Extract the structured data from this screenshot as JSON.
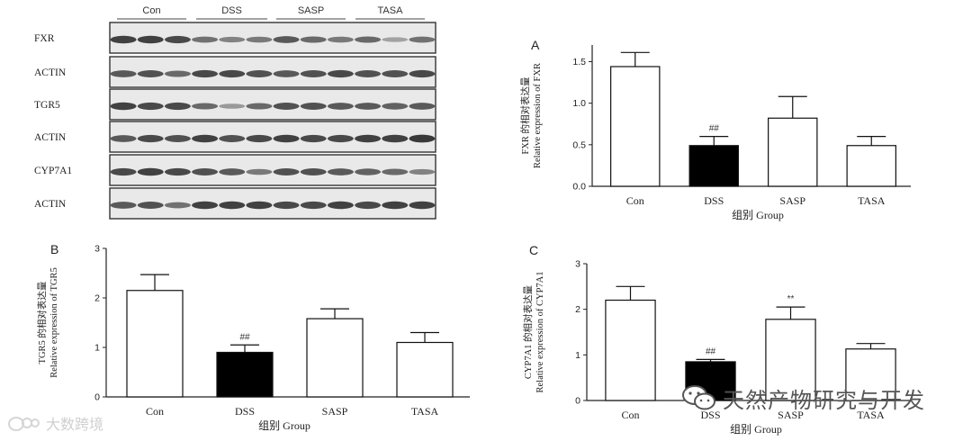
{
  "blot": {
    "groups": [
      "Con",
      "DSS",
      "SASP",
      "TASA"
    ],
    "rows": [
      {
        "label": "FXR",
        "bands": [
          0.85,
          0.85,
          0.8,
          0.55,
          0.45,
          0.5,
          0.7,
          0.6,
          0.5,
          0.6,
          0.25,
          0.55
        ]
      },
      {
        "label": "ACTIN",
        "bands": [
          0.7,
          0.75,
          0.6,
          0.8,
          0.8,
          0.75,
          0.7,
          0.75,
          0.8,
          0.75,
          0.75,
          0.8
        ]
      },
      {
        "label": "TGR5",
        "bands": [
          0.85,
          0.8,
          0.8,
          0.6,
          0.3,
          0.6,
          0.75,
          0.75,
          0.7,
          0.7,
          0.65,
          0.7
        ]
      },
      {
        "label": "ACTIN",
        "bands": [
          0.7,
          0.8,
          0.75,
          0.85,
          0.75,
          0.8,
          0.85,
          0.8,
          0.8,
          0.85,
          0.85,
          0.9
        ]
      },
      {
        "label": "CYP7A1",
        "bands": [
          0.8,
          0.85,
          0.8,
          0.75,
          0.7,
          0.5,
          0.75,
          0.75,
          0.7,
          0.65,
          0.6,
          0.45
        ]
      },
      {
        "label": "ACTIN",
        "bands": [
          0.7,
          0.75,
          0.55,
          0.85,
          0.85,
          0.85,
          0.8,
          0.8,
          0.85,
          0.8,
          0.85,
          0.85
        ]
      }
    ]
  },
  "chart_data": [
    {
      "type": "bar",
      "panel_letter": "A",
      "categories": [
        "Con",
        "DSS",
        "SASP",
        "TASA"
      ],
      "values": [
        1.44,
        0.49,
        0.82,
        0.49
      ],
      "errors": [
        0.17,
        0.11,
        0.26,
        0.11
      ],
      "fills": [
        "#ffffff",
        "#000000",
        "#ffffff",
        "#ffffff"
      ],
      "annotations": [
        "",
        "##",
        "",
        ""
      ],
      "ylabel_cn": "FXR 的相对表达量",
      "ylabel_en": "Relative expression of FXR",
      "xlabel": "组别  Group",
      "ylim": [
        0,
        1.7
      ],
      "ticks": [
        0.0,
        0.5,
        1.0,
        1.5
      ],
      "tick_labels": [
        "0.0",
        "0.5",
        "1.0",
        "1.5"
      ]
    },
    {
      "type": "bar",
      "panel_letter": "B",
      "categories": [
        "Con",
        "DSS",
        "SASP",
        "TASA"
      ],
      "values": [
        2.15,
        0.9,
        1.58,
        1.1
      ],
      "errors": [
        0.32,
        0.15,
        0.2,
        0.2
      ],
      "fills": [
        "#ffffff",
        "#000000",
        "#ffffff",
        "#ffffff"
      ],
      "annotations": [
        "",
        "##",
        "",
        ""
      ],
      "ylabel_cn": "TGR5 的相对表达量",
      "ylabel_en": "Relative expression of TGR5",
      "xlabel": "组别  Group",
      "ylim": [
        0,
        3
      ],
      "ticks": [
        0,
        1,
        2,
        3
      ],
      "tick_labels": [
        "0",
        "1",
        "2",
        "3"
      ]
    },
    {
      "type": "bar",
      "panel_letter": "C",
      "categories": [
        "Con",
        "DSS",
        "SASP",
        "TASA"
      ],
      "values": [
        2.2,
        0.85,
        1.78,
        1.13
      ],
      "errors": [
        0.3,
        0.05,
        0.27,
        0.12
      ],
      "fills": [
        "#ffffff",
        "#000000",
        "#ffffff",
        "#ffffff"
      ],
      "annotations": [
        "",
        "##",
        "**",
        ""
      ],
      "ylabel_cn": "CYP7A1 的相对表达量",
      "ylabel_en": "Relative expression of CYP7A1",
      "xlabel": "组别  Group",
      "ylim": [
        0,
        3
      ],
      "ticks": [
        0,
        1,
        2,
        3
      ],
      "tick_labels": [
        "0",
        "1",
        "2",
        "3"
      ]
    }
  ],
  "watermarks": {
    "left": "大数跨境",
    "right": "天然产物研究与开发"
  }
}
